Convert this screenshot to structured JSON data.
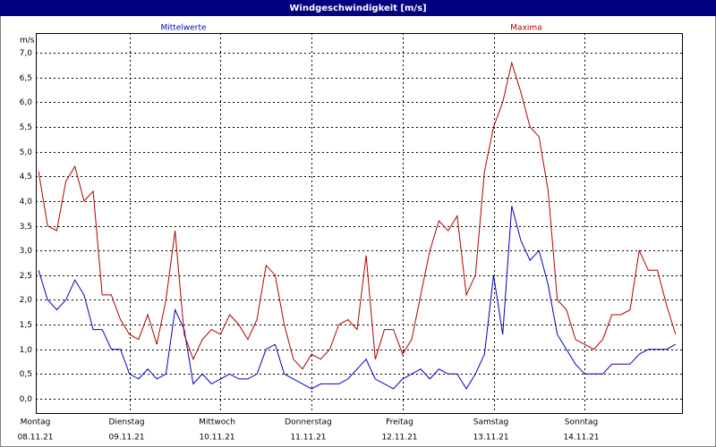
{
  "chart_data": {
    "type": "line",
    "title": "Windgeschwindigkeit [m/s]",
    "y_label": "m/s",
    "x": [
      0,
      0.1,
      0.2,
      0.3,
      0.4,
      0.5,
      0.6,
      0.7,
      0.8,
      0.9,
      1,
      1.1,
      1.2,
      1.3,
      1.4,
      1.5,
      1.6,
      1.7,
      1.8,
      1.9,
      2,
      2.1,
      2.2,
      2.3,
      2.4,
      2.5,
      2.6,
      2.7,
      2.8,
      2.9,
      3,
      3.1,
      3.2,
      3.3,
      3.4,
      3.5,
      3.6,
      3.7,
      3.8,
      3.9,
      4,
      4.1,
      4.2,
      4.3,
      4.4,
      4.5,
      4.6,
      4.7,
      4.8,
      4.9,
      5,
      5.1,
      5.2,
      5.3,
      5.4,
      5.5,
      5.6,
      5.7,
      5.8,
      5.9,
      6,
      6.1,
      6.2,
      6.3,
      6.4,
      6.5,
      6.6,
      6.7,
      6.8,
      6.9,
      7
    ],
    "series": [
      {
        "name": "Mittelwerte",
        "color": "#0000c0",
        "values": [
          2.6,
          2.0,
          1.8,
          2.0,
          2.4,
          2.1,
          1.4,
          1.4,
          1.0,
          1.0,
          0.5,
          0.4,
          0.6,
          0.4,
          0.5,
          1.8,
          1.4,
          0.3,
          0.5,
          0.3,
          0.4,
          0.5,
          0.4,
          0.4,
          0.5,
          1.0,
          1.1,
          0.5,
          0.4,
          0.3,
          0.2,
          0.3,
          0.3,
          0.3,
          0.4,
          0.6,
          0.8,
          0.4,
          0.3,
          0.2,
          0.4,
          0.5,
          0.6,
          0.4,
          0.6,
          0.5,
          0.5,
          0.2,
          0.5,
          0.9,
          2.5,
          1.3,
          3.9,
          3.2,
          2.8,
          3.0,
          2.3,
          1.3,
          1.0,
          0.7,
          0.5,
          0.5,
          0.5,
          0.7,
          0.7,
          0.7,
          0.9,
          1.0,
          1.0,
          1.0,
          1.1
        ]
      },
      {
        "name": "Maxima",
        "color": "#b00000",
        "values": [
          4.6,
          3.5,
          3.4,
          4.4,
          4.7,
          4.0,
          4.2,
          2.1,
          2.1,
          1.6,
          1.3,
          1.2,
          1.7,
          1.1,
          2.0,
          3.4,
          1.3,
          0.8,
          1.2,
          1.4,
          1.3,
          1.7,
          1.5,
          1.2,
          1.6,
          2.7,
          2.5,
          1.5,
          0.8,
          0.6,
          0.9,
          0.8,
          1.0,
          1.5,
          1.6,
          1.4,
          2.9,
          0.8,
          1.4,
          1.4,
          0.9,
          1.2,
          2.1,
          3.0,
          3.6,
          3.4,
          3.7,
          2.1,
          2.5,
          4.6,
          5.5,
          6.0,
          6.8,
          6.2,
          5.5,
          5.3,
          4.2,
          2.0,
          1.8,
          1.2,
          1.1,
          1.0,
          1.2,
          1.7,
          1.7,
          1.8,
          3.0,
          2.6,
          2.6,
          1.9,
          1.3
        ]
      }
    ],
    "xlim": [
      -0.03,
      7.07
    ],
    "xticks": [
      {
        "value": 0,
        "label": "Montag",
        "date": "08.11.21"
      },
      {
        "value": 1,
        "label": "Dienstag",
        "date": "09.11.21"
      },
      {
        "value": 2,
        "label": "Mittwoch",
        "date": "10.11.21"
      },
      {
        "value": 3,
        "label": "Donnerstag",
        "date": "11.11.21"
      },
      {
        "value": 4,
        "label": "Freitag",
        "date": "12.11.21"
      },
      {
        "value": 5,
        "label": "Samstag",
        "date": "13.11.21"
      },
      {
        "value": 6,
        "label": "Sonntag",
        "date": "14.11.21"
      }
    ],
    "ylim": [
      -0.29,
      7.4
    ],
    "yticks": [
      {
        "value": 0,
        "label": "0,0"
      },
      {
        "value": 0.5,
        "label": "0,5"
      },
      {
        "value": 1,
        "label": "1,0"
      },
      {
        "value": 1.5,
        "label": "1,5"
      },
      {
        "value": 2,
        "label": "2,0"
      },
      {
        "value": 2.5,
        "label": "2,5"
      },
      {
        "value": 3,
        "label": "3,0"
      },
      {
        "value": 3.5,
        "label": "3,5"
      },
      {
        "value": 4,
        "label": "4,0"
      },
      {
        "value": 4.5,
        "label": "4,5"
      },
      {
        "value": 5,
        "label": "5,0"
      },
      {
        "value": 5.5,
        "label": "5,5"
      },
      {
        "value": 6,
        "label": "6,0"
      },
      {
        "value": 6.5,
        "label": "6,5"
      },
      {
        "value": 7,
        "label": "7,0"
      }
    ],
    "grid": true
  }
}
